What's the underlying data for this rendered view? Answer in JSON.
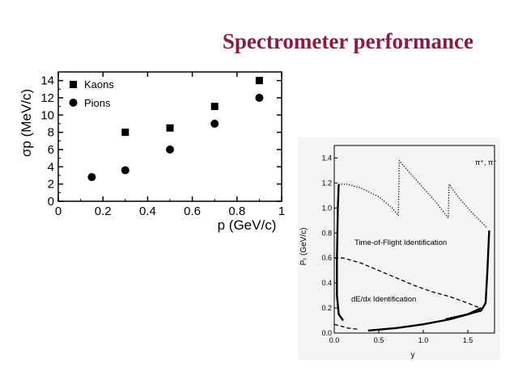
{
  "slide": {
    "title": "Spectrometer performance",
    "title_color": "#8b1a4a"
  },
  "chart_data": [
    {
      "type": "scatter",
      "title": "",
      "xlabel": "p (GeV/c)",
      "ylabel": "σp (MeV/c)",
      "xlim": [
        0,
        1
      ],
      "ylim": [
        0,
        15
      ],
      "x_ticks": [
        "0",
        "0.2",
        "0.4",
        "0.6",
        "0.8",
        "1"
      ],
      "y_ticks": [
        "0",
        "2",
        "4",
        "6",
        "8",
        "10",
        "12",
        "14"
      ],
      "legend_position": "top-left",
      "grid": false,
      "series": [
        {
          "name": "Kaons",
          "marker": "square",
          "x": [
            0.3,
            0.5,
            0.7,
            0.9
          ],
          "y": [
            8,
            8.5,
            11,
            14
          ]
        },
        {
          "name": "Pions",
          "marker": "circle",
          "x": [
            0.15,
            0.3,
            0.5,
            0.7,
            0.9
          ],
          "y": [
            2.8,
            3.6,
            6,
            9,
            12
          ]
        }
      ]
    },
    {
      "type": "line",
      "title": "",
      "annotation_corner": "π⁺, π⁻",
      "xlabel": "y",
      "ylabel": "Pₜ (GeV/c)",
      "xlim": [
        0,
        1.8
      ],
      "ylim": [
        0,
        1.5
      ],
      "x_ticks": [
        "0.0",
        "0.5",
        "1.0",
        "1.5"
      ],
      "y_ticks": [
        "0.0",
        "0.2",
        "0.4",
        "0.6",
        "0.8",
        "1.0",
        "1.2",
        "1.4"
      ],
      "grid": false,
      "region_labels": [
        "Time-of-Flight Identification",
        "dE/dx Identification"
      ],
      "curves": [
        {
          "name": "",
          "style": "dotted",
          "x": [
            0.05,
            0.15,
            0.3,
            0.5,
            0.65,
            0.72,
            0.73,
            0.85,
            1.0,
            1.15,
            1.28,
            1.29,
            1.4,
            1.55,
            1.72
          ],
          "y": [
            1.19,
            1.19,
            1.16,
            1.09,
            1.0,
            0.94,
            1.38,
            1.28,
            1.16,
            1.04,
            0.92,
            1.19,
            1.08,
            0.96,
            0.84
          ]
        },
        {
          "name": "",
          "style": "dashed",
          "x": [
            0.0,
            0.1,
            0.3,
            0.5,
            0.7,
            0.9,
            1.1,
            1.3,
            1.5,
            1.6,
            1.65
          ],
          "y": [
            0.6,
            0.6,
            0.56,
            0.5,
            0.44,
            0.38,
            0.33,
            0.29,
            0.24,
            0.21,
            0.2
          ]
        },
        {
          "name": "",
          "style": "dashed",
          "x": [
            0.0,
            0.05,
            0.15,
            0.27
          ],
          "y": [
            0.07,
            0.06,
            0.04,
            0.03
          ]
        },
        {
          "name": "",
          "style": "solid",
          "x": [
            0.05,
            0.04,
            0.03,
            0.03,
            0.05,
            0.1
          ],
          "y": [
            1.19,
            1.0,
            0.6,
            0.3,
            0.15,
            0.1
          ]
        },
        {
          "name": "",
          "style": "solid",
          "x": [
            0.38,
            0.7,
            1.0,
            1.3,
            1.5,
            1.65,
            1.7,
            1.72,
            1.74
          ],
          "y": [
            0.02,
            0.04,
            0.07,
            0.11,
            0.15,
            0.18,
            0.24,
            0.5,
            0.82
          ]
        },
        {
          "name": "",
          "style": "solid",
          "x": [
            1.25,
            1.5,
            1.65
          ],
          "y": [
            0.11,
            0.15,
            0.2
          ]
        }
      ]
    }
  ]
}
